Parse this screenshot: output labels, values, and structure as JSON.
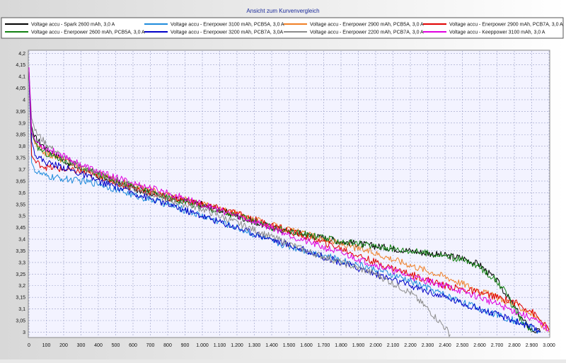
{
  "chart_data": {
    "type": "line",
    "title": "Ansicht zum Kurvenvergleich",
    "xlabel": "",
    "ylabel": "",
    "xlim": [
      0,
      3000
    ],
    "ylim": [
      2.98,
      4.21
    ],
    "x_ticks": [
      "0",
      "100",
      "200",
      "300",
      "400",
      "500",
      "600",
      "700",
      "800",
      "900",
      "1.000",
      "1.100",
      "1.200",
      "1.300",
      "1.400",
      "1.500",
      "1.600",
      "1.700",
      "1.800",
      "1.900",
      "2.000",
      "2.100",
      "2.200",
      "2.300",
      "2.400",
      "2.500",
      "2.600",
      "2.700",
      "2.800",
      "2.900",
      "3.000"
    ],
    "y_ticks": [
      "3",
      "3,05",
      "3,1",
      "3,15",
      "3,2",
      "3,25",
      "3,3",
      "3,35",
      "3,4",
      "3,45",
      "3,5",
      "3,55",
      "3,6",
      "3,65",
      "3,7",
      "3,75",
      "3,8",
      "3,85",
      "3,9",
      "3,95",
      "4",
      "4,05",
      "4,1",
      "4,15",
      "4,2"
    ],
    "grid": true,
    "legend_position": "top",
    "series": [
      {
        "name": "Voltage accu - Spark 2600 mAh, 3,0 A",
        "color": "#000000",
        "x": [
          0,
          10,
          30,
          100,
          200,
          300,
          400,
          600,
          800,
          1000,
          1200,
          1400,
          1600,
          1800,
          2000,
          2200,
          2400,
          2500,
          2600,
          2700,
          2800,
          2850,
          2900,
          2950
        ],
        "y": [
          4.12,
          3.9,
          3.84,
          3.79,
          3.74,
          3.7,
          3.67,
          3.62,
          3.58,
          3.55,
          3.5,
          3.45,
          3.42,
          3.39,
          3.37,
          3.35,
          3.33,
          3.32,
          3.29,
          3.22,
          3.11,
          3.05,
          3.01,
          3.0
        ]
      },
      {
        "name": "Voltage accu - Enerpower 3100 mAh, PCB5A, 3,0 A",
        "color": "#1e8bdc",
        "x": [
          0,
          15,
          40,
          100,
          200,
          400,
          600,
          800,
          1000,
          1200,
          1400,
          1600,
          1800,
          2000,
          2200,
          2300,
          2400,
          2600,
          2800,
          2900,
          2950
        ],
        "y": [
          4.1,
          3.73,
          3.69,
          3.67,
          3.66,
          3.64,
          3.59,
          3.55,
          3.5,
          3.45,
          3.39,
          3.35,
          3.31,
          3.27,
          3.22,
          3.19,
          3.16,
          3.1,
          3.05,
          3.02,
          3.0
        ]
      },
      {
        "name": "Voltage accu - Enerpower 2900 mAh, PCB5A, 3,0 A",
        "color": "#f07f25",
        "x": [
          0,
          15,
          40,
          100,
          200,
          300,
          400,
          600,
          800,
          1000,
          1200,
          1400,
          1600,
          1800,
          2000,
          2200,
          2400,
          2600,
          2800,
          2900,
          3000
        ],
        "y": [
          4.12,
          3.86,
          3.8,
          3.77,
          3.74,
          3.71,
          3.68,
          3.63,
          3.59,
          3.55,
          3.51,
          3.46,
          3.42,
          3.38,
          3.34,
          3.29,
          3.24,
          3.18,
          3.12,
          3.08,
          3.0
        ]
      },
      {
        "name": "Voltage accu - Enerpower 2900 mAh, PCB7A, 3,0 A",
        "color": "#e00000",
        "x": [
          0,
          15,
          40,
          100,
          200,
          300,
          400,
          600,
          800,
          1000,
          1200,
          1400,
          1600,
          1800,
          2000,
          2200,
          2400,
          2600,
          2800,
          2900,
          3000
        ],
        "y": [
          4.12,
          3.76,
          3.73,
          3.71,
          3.7,
          3.69,
          3.67,
          3.62,
          3.58,
          3.55,
          3.51,
          3.46,
          3.41,
          3.36,
          3.3,
          3.25,
          3.2,
          3.17,
          3.13,
          3.09,
          3.01
        ]
      },
      {
        "name": "Voltage accu - Enerpower 2600 mAh, PCB5A, 3,0 A",
        "color": "#118011",
        "x": [
          0,
          15,
          40,
          100,
          200,
          300,
          400,
          600,
          800,
          1000,
          1200,
          1400,
          1600,
          1800,
          2000,
          2200,
          2400,
          2500,
          2600,
          2700,
          2750,
          2800,
          2850,
          2900
        ],
        "y": [
          4.12,
          3.86,
          3.8,
          3.77,
          3.74,
          3.71,
          3.68,
          3.63,
          3.58,
          3.54,
          3.5,
          3.45,
          3.42,
          3.39,
          3.37,
          3.35,
          3.33,
          3.31,
          3.28,
          3.22,
          3.17,
          3.1,
          3.04,
          3.0
        ]
      },
      {
        "name": "Voltage accu - Enerpower 3200 mAh, PCB7A, 3,0A",
        "color": "#0000c8",
        "x": [
          0,
          15,
          40,
          100,
          200,
          300,
          400,
          600,
          800,
          1000,
          1200,
          1400,
          1600,
          1800,
          2000,
          2200,
          2400,
          2600,
          2800,
          2900,
          2950
        ],
        "y": [
          4.12,
          3.82,
          3.76,
          3.73,
          3.71,
          3.68,
          3.65,
          3.6,
          3.55,
          3.5,
          3.45,
          3.4,
          3.35,
          3.3,
          3.25,
          3.2,
          3.15,
          3.1,
          3.05,
          3.02,
          3.0
        ]
      },
      {
        "name": "Voltage accu - Enerpower 2200 mAh, PCB7A, 3,0 A",
        "color": "#8c8c8c",
        "x": [
          0,
          15,
          40,
          100,
          200,
          300,
          400,
          600,
          800,
          1000,
          1200,
          1400,
          1600,
          1800,
          2000,
          2100,
          2200,
          2300,
          2350,
          2400,
          2430
        ],
        "y": [
          4.12,
          3.92,
          3.86,
          3.81,
          3.75,
          3.71,
          3.68,
          3.62,
          3.57,
          3.53,
          3.47,
          3.41,
          3.35,
          3.3,
          3.25,
          3.21,
          3.17,
          3.1,
          3.06,
          3.02,
          2.99
        ]
      },
      {
        "name": "Voltage accu - Keeppower 3100 mAh, 3,0 A",
        "color": "#e000e0",
        "x": [
          0,
          15,
          40,
          100,
          200,
          300,
          400,
          600,
          800,
          1000,
          1200,
          1400,
          1600,
          1800,
          2000,
          2200,
          2400,
          2600,
          2800,
          2900,
          3000
        ],
        "y": [
          4.14,
          3.86,
          3.82,
          3.79,
          3.76,
          3.72,
          3.69,
          3.64,
          3.6,
          3.55,
          3.5,
          3.45,
          3.39,
          3.34,
          3.29,
          3.24,
          3.2,
          3.15,
          3.09,
          3.06,
          3.01
        ]
      }
    ]
  }
}
